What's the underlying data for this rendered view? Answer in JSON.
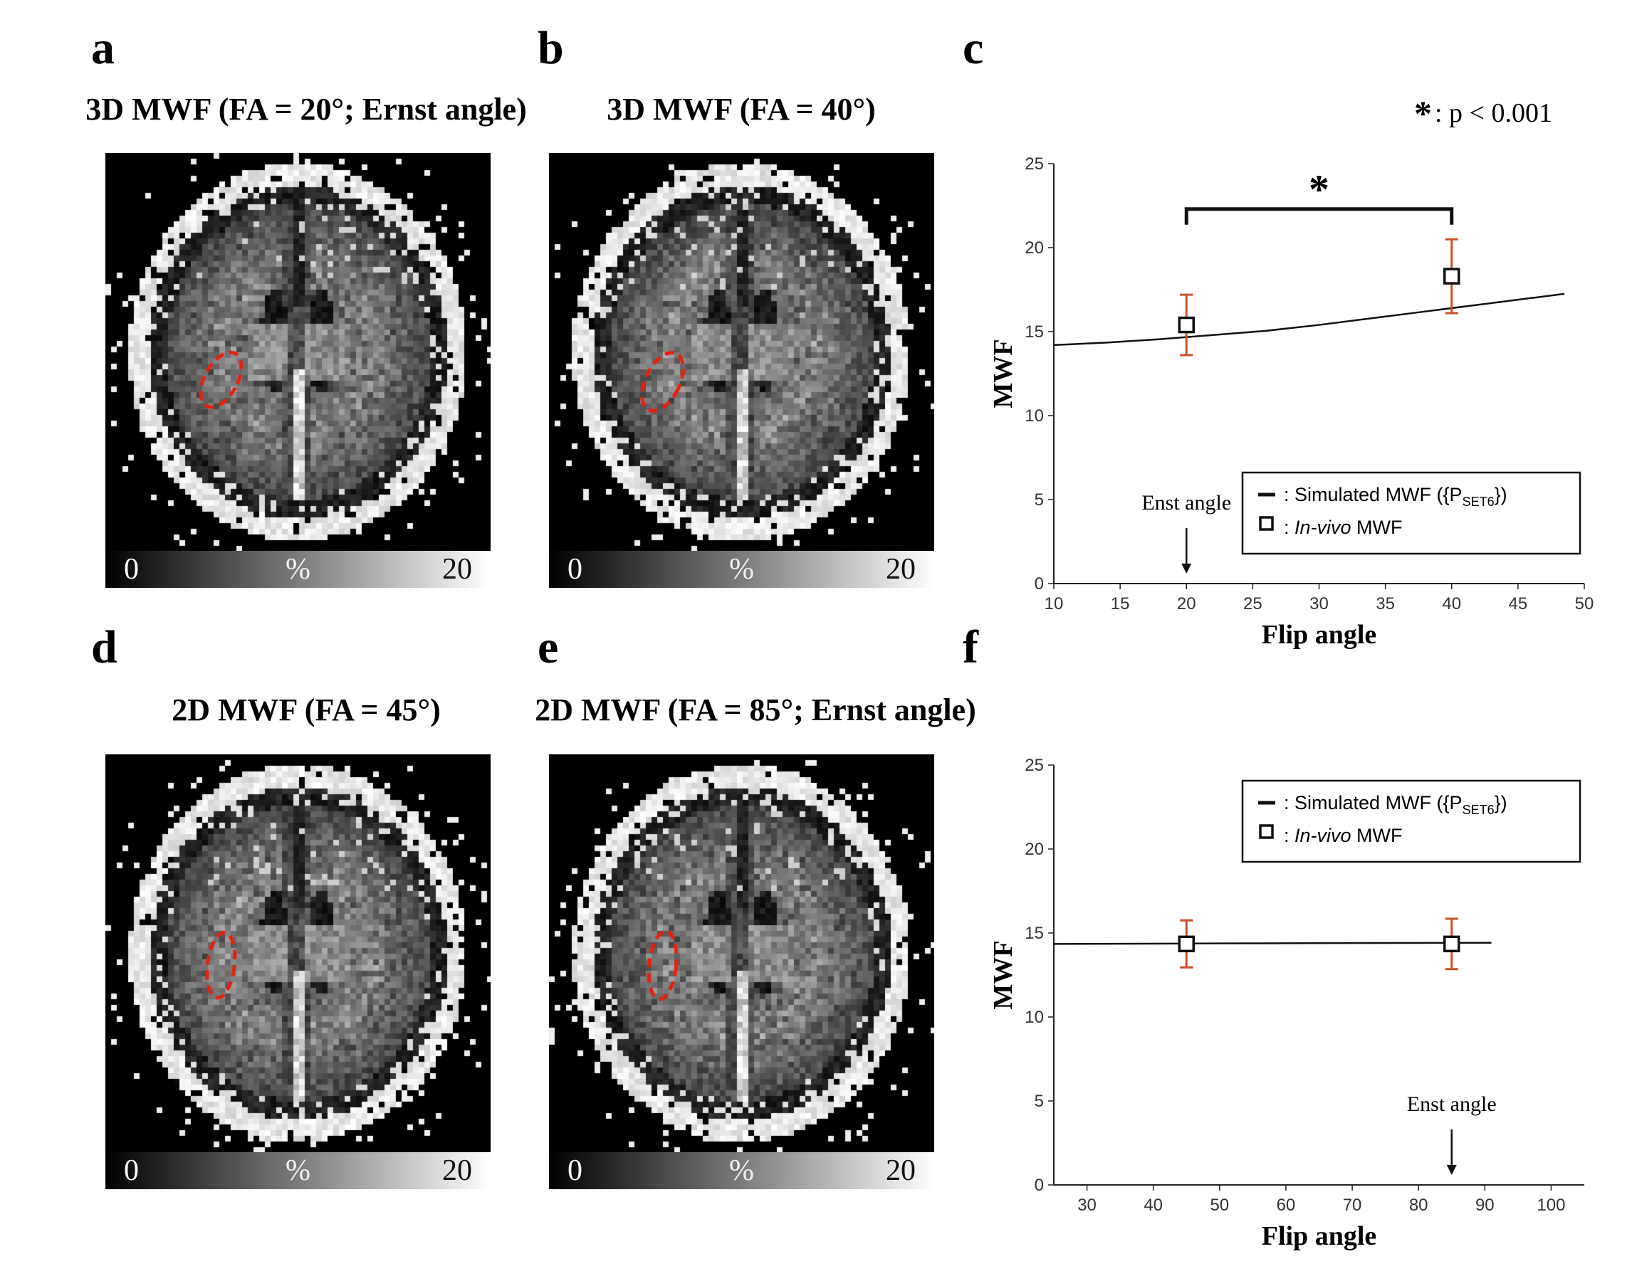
{
  "panels": {
    "a": {
      "letter": "a",
      "title": "3D MWF  (FA = 20°; Ernst angle)",
      "colorbar": {
        "min": "0",
        "unit": "%",
        "max": "20"
      }
    },
    "b": {
      "letter": "b",
      "title": "3D MWF (FA = 40°)",
      "colorbar": {
        "min": "0",
        "unit": "%",
        "max": "20"
      }
    },
    "c": {
      "letter": "c",
      "sig_note_star": "*",
      "sig_note_text": ": p < 0.001"
    },
    "d": {
      "letter": "d",
      "title": "2D MWF  (FA = 45°)",
      "colorbar": {
        "min": "0",
        "unit": "%",
        "max": "20"
      }
    },
    "e": {
      "letter": "e",
      "title": "2D MWF (FA = 85°; Ernst angle)",
      "colorbar": {
        "min": "0",
        "unit": "%",
        "max": "20"
      }
    },
    "f": {
      "letter": "f"
    }
  },
  "chart_data": [
    {
      "name": "c",
      "type": "line",
      "xlabel": "Flip angle",
      "ylabel": "MWF",
      "xlim": [
        10,
        50
      ],
      "ylim": [
        0,
        25
      ],
      "xticks": [
        10,
        15,
        20,
        25,
        30,
        35,
        40,
        45,
        50
      ],
      "yticks": [
        0,
        5,
        10,
        15,
        20,
        25
      ],
      "error_color": "#cc4f28",
      "line": {
        "name": "Simulated MWF ({P_SET6})",
        "x": [
          10,
          14,
          18,
          22,
          26,
          30,
          34,
          38,
          42,
          46,
          48.5
        ],
        "y": [
          14.2,
          14.35,
          14.55,
          14.8,
          15.05,
          15.4,
          15.8,
          16.2,
          16.6,
          17.0,
          17.25
        ]
      },
      "points": {
        "name": "In-vivo MWF",
        "values": [
          {
            "x": 20,
            "y": 15.4,
            "err": 1.8
          },
          {
            "x": 40,
            "y": 18.3,
            "err": 2.2
          }
        ]
      },
      "sig_bracket": {
        "x1": 20,
        "x2": 40,
        "y": 22.3,
        "label": "*"
      },
      "ernst": {
        "label": "Enst angle",
        "x": 20,
        "label_y": 4.4,
        "arrow_top": 3.3,
        "arrow_bottom": 0.6
      },
      "legend": {
        "position": "bottom-right",
        "entries": [
          {
            "marker": "line",
            "pre": ": Simulated MWF ({P",
            "sub": "SET6",
            "post": "})"
          },
          {
            "marker": "square",
            "pre": ": ",
            "italic": "In-vivo",
            "post": " MWF"
          }
        ]
      }
    },
    {
      "name": "f",
      "type": "line",
      "xlabel": "Flip angle",
      "ylabel": "MWF",
      "xlim": [
        25,
        105
      ],
      "ylim": [
        0,
        25
      ],
      "xticks": [
        30,
        40,
        50,
        60,
        70,
        80,
        90,
        100
      ],
      "yticks": [
        0,
        5,
        10,
        15,
        20,
        25
      ],
      "error_color": "#cc4f28",
      "line": {
        "name": "Simulated MWF ({P_SET6})",
        "x": [
          25,
          50,
          70,
          91
        ],
        "y": [
          14.35,
          14.38,
          14.4,
          14.42
        ]
      },
      "points": {
        "name": "In-vivo MWF",
        "values": [
          {
            "x": 45,
            "y": 14.35,
            "err": 1.4
          },
          {
            "x": 85,
            "y": 14.35,
            "err": 1.5
          }
        ]
      },
      "sig_bracket": null,
      "ernst": {
        "label": "Enst angle",
        "x": 85,
        "label_y": 4.4,
        "arrow_top": 3.3,
        "arrow_bottom": 0.6
      },
      "legend": {
        "position": "top-right",
        "entries": [
          {
            "marker": "line",
            "pre": ": Simulated MWF ({P",
            "sub": "SET6",
            "post": "})"
          },
          {
            "marker": "square",
            "pre": ": ",
            "italic": "In-vivo",
            "post": " MWF"
          }
        ]
      }
    }
  ]
}
